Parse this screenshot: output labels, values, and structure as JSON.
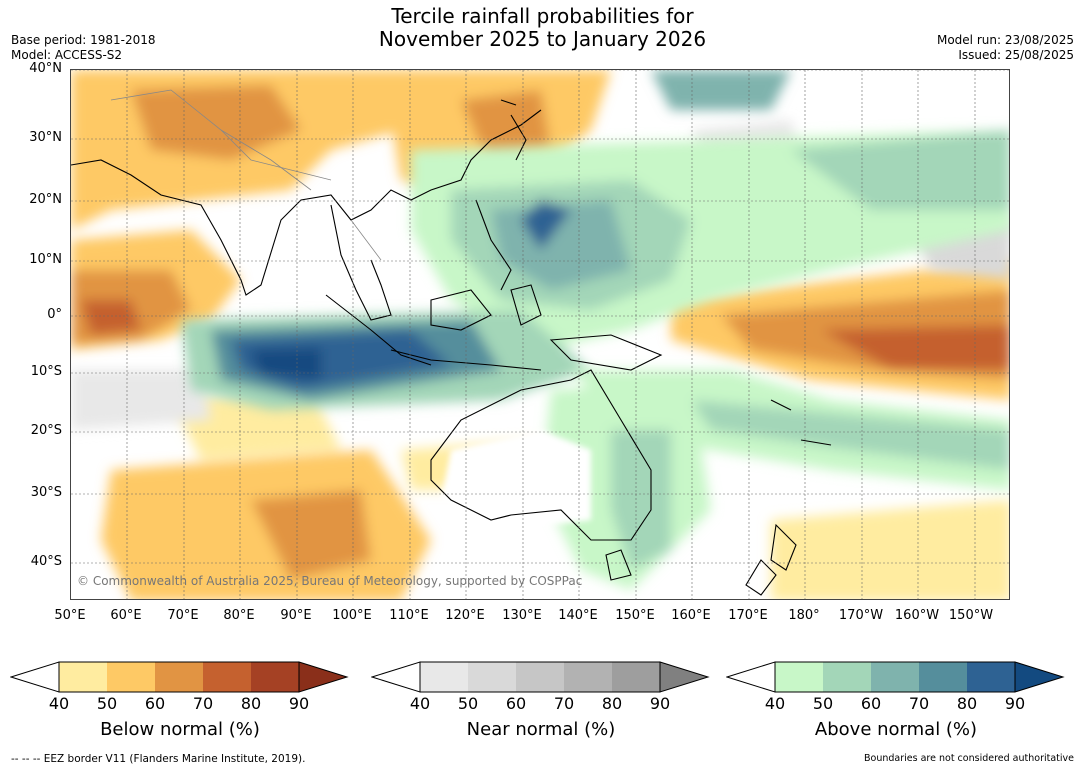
{
  "title": {
    "line1": "Tercile rainfall probabilities for",
    "line2": "November 2025 to January 2026"
  },
  "meta_left": {
    "base_period": "Base period: 1981-2018",
    "model": "Model: ACCESS-S2"
  },
  "meta_right": {
    "model_run": "Model run: 23/08/2025",
    "issued": "Issued: 25/08/2025"
  },
  "map": {
    "copyright": "© Commonwealth of Australia 2025, Bureau of Meteorology, supported by COSPPac",
    "lat_labels": [
      "40°N",
      "30°N",
      "20°N",
      "10°N",
      "0°",
      "10°S",
      "20°S",
      "30°S",
      "40°S"
    ],
    "lon_labels": [
      "50°E",
      "60°E",
      "70°E",
      "80°E",
      "90°E",
      "100°E",
      "110°E",
      "120°E",
      "130°E",
      "140°E",
      "150°E",
      "160°E",
      "170°E",
      "180°",
      "170°W",
      "160°W",
      "150°W"
    ]
  },
  "colorbars": [
    {
      "label": "Below normal (%)",
      "ticks": [
        "40",
        "50",
        "60",
        "70",
        "80",
        "90"
      ],
      "colors": [
        "#ffffff",
        "#ffeca0",
        "#fec965",
        "#e19443",
        "#c5612f",
        "#a54124",
        "#8a2f1a"
      ]
    },
    {
      "label": "Near normal (%)",
      "ticks": [
        "40",
        "50",
        "60",
        "70",
        "80",
        "90"
      ],
      "colors": [
        "#ffffff",
        "#e8e8e8",
        "#d9d9d9",
        "#c6c6c6",
        "#b2b2b2",
        "#9e9e9e",
        "#808080"
      ]
    },
    {
      "label": "Above normal (%)",
      "ticks": [
        "40",
        "50",
        "60",
        "70",
        "80",
        "90"
      ],
      "colors": [
        "#ffffff",
        "#c8f7c8",
        "#a3d6b8",
        "#7fb3ad",
        "#558e9c",
        "#2e6293",
        "#134a80"
      ]
    }
  ],
  "footer": {
    "left": "--  --  -- EEZ border V11 (Flanders Marine Institute, 2019).",
    "right": "Boundaries are not considered authoritative"
  }
}
